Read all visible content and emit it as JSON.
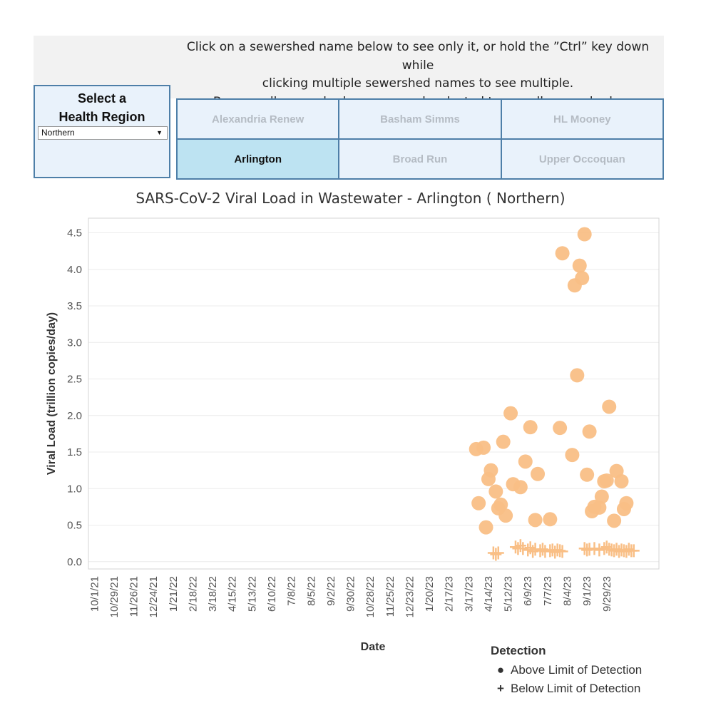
{
  "instructions": {
    "line1": "Click on a sewershed name below to see only it, or hold the ”Ctrl” key down while",
    "line2": "clicking multiple sewershed names to see multiple.",
    "line3": "Be sure all sewershed names are deselected to see all sewersheds."
  },
  "region": {
    "title_line1": "Select a",
    "title_line2": "Health Region",
    "selected": "Northern"
  },
  "sewersheds": [
    {
      "label": "Alexandria Renew",
      "selected": false
    },
    {
      "label": "Basham Simms",
      "selected": false
    },
    {
      "label": "HL Mooney",
      "selected": false
    },
    {
      "label": "Arlington",
      "selected": true
    },
    {
      "label": "Broad Run",
      "selected": false
    },
    {
      "label": "Upper Occoquan",
      "selected": false
    }
  ],
  "colors": {
    "point": "#f9bf86",
    "grid": "#ececec",
    "axis": "#cccccc"
  },
  "chart_data": {
    "type": "scatter",
    "title": "SARS-CoV-2 Viral Load in Wastewater - Arlington ( Northern)",
    "xlabel": "Date",
    "ylabel": "Viral Load (trillion copies/day)",
    "ylim": [
      -0.1,
      4.7
    ],
    "yticks": [
      "0.0",
      "0.5",
      "1.0",
      "1.5",
      "2.0",
      "2.5",
      "3.0",
      "3.5",
      "4.0",
      "4.5"
    ],
    "xtick_labels": [
      "10/1/21",
      "10/29/21",
      "11/26/21",
      "12/24/21",
      "1/21/22",
      "2/18/22",
      "3/18/22",
      "4/15/22",
      "5/13/22",
      "6/10/22",
      "7/8/22",
      "8/5/22",
      "9/2/22",
      "9/30/22",
      "10/28/22",
      "11/25/22",
      "12/23/22",
      "1/20/23",
      "2/17/23",
      "3/17/23",
      "4/14/23",
      "5/12/23",
      "6/9/23",
      "7/7/23",
      "8/4/23",
      "9/1/23",
      "9/29/23"
    ],
    "x_unit": "weeks since 10/1/21",
    "xlim": [
      -1.2,
      114.6
    ],
    "series": [
      {
        "name": "Above Limit of Detection",
        "marker": "circle",
        "x": [
          77.5,
          78.0,
          79.0,
          79.5,
          80.0,
          80.5,
          81.5,
          82.0,
          82.5,
          83.0,
          83.5,
          84.5,
          85.0,
          86.5,
          87.5,
          88.5,
          89.5,
          90.0,
          92.5,
          94.5,
          95.0,
          97.0,
          97.5,
          98.0,
          98.5,
          99.0,
          99.5,
          100.0,
          100.5,
          101.0,
          101.5,
          102.5,
          103.0,
          103.5,
          104.0,
          104.5,
          105.5,
          106.0,
          107.0,
          107.5,
          108.0
        ],
        "y": [
          1.54,
          0.8,
          1.56,
          0.47,
          1.13,
          1.25,
          0.96,
          0.73,
          0.78,
          1.64,
          0.63,
          2.03,
          1.06,
          1.02,
          1.37,
          1.84,
          0.57,
          1.2,
          0.58,
          1.83,
          4.22,
          1.46,
          3.78,
          2.55,
          4.05,
          3.88,
          4.48,
          1.19,
          1.78,
          0.69,
          0.75,
          0.74,
          0.89,
          1.1,
          1.11,
          2.12,
          0.56,
          1.24,
          1.1,
          0.72,
          0.8
        ],
        "note": "a few overlapping points approximated"
      },
      {
        "name": "Below Limit of Detection",
        "marker": "plus",
        "x": [
          81.0,
          81.5,
          82.0,
          85.5,
          86.0,
          86.5,
          87.0,
          88.0,
          88.5,
          89.0,
          89.5,
          90.5,
          91.0,
          91.5,
          92.5,
          93.0,
          93.5,
          94.0,
          94.5,
          95.0,
          99.5,
          100.0,
          100.5,
          101.5,
          102.5,
          103.5,
          104.0,
          104.5,
          105.0,
          105.5,
          106.0,
          106.5,
          107.0,
          107.5,
          108.0,
          108.5,
          109.0,
          109.5
        ],
        "y": [
          0.12,
          0.1,
          0.12,
          0.2,
          0.18,
          0.22,
          0.18,
          0.16,
          0.19,
          0.14,
          0.17,
          0.15,
          0.17,
          0.14,
          0.15,
          0.16,
          0.13,
          0.16,
          0.15,
          0.14,
          0.18,
          0.16,
          0.17,
          0.18,
          0.16,
          0.18,
          0.2,
          0.17,
          0.16,
          0.15,
          0.17,
          0.14,
          0.16,
          0.15,
          0.14,
          0.17,
          0.15,
          0.15
        ]
      }
    ],
    "legend": {
      "title": "Detection",
      "items": [
        "Above Limit of Detection",
        "Below Limit of Detection"
      ],
      "position": "bottom-right"
    }
  }
}
